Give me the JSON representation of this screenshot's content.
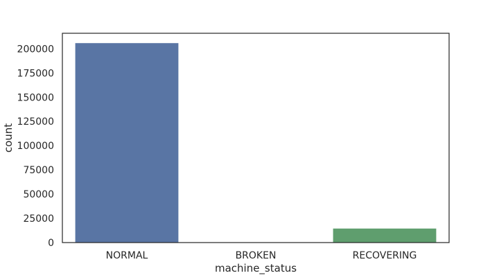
{
  "chart_data": {
    "type": "bar",
    "title": "",
    "xlabel": "machine_status",
    "ylabel": "count",
    "categories": [
      "NORMAL",
      "BROKEN",
      "RECOVERING"
    ],
    "values": [
      205836,
      7,
      14477
    ],
    "colors": [
      "#5975a4",
      "#cc8963",
      "#5f9e6e"
    ],
    "ylim": [
      0,
      216000
    ],
    "yticks": [
      0,
      25000,
      50000,
      75000,
      100000,
      125000,
      150000,
      175000,
      200000
    ],
    "grid": false,
    "legend": "none"
  }
}
